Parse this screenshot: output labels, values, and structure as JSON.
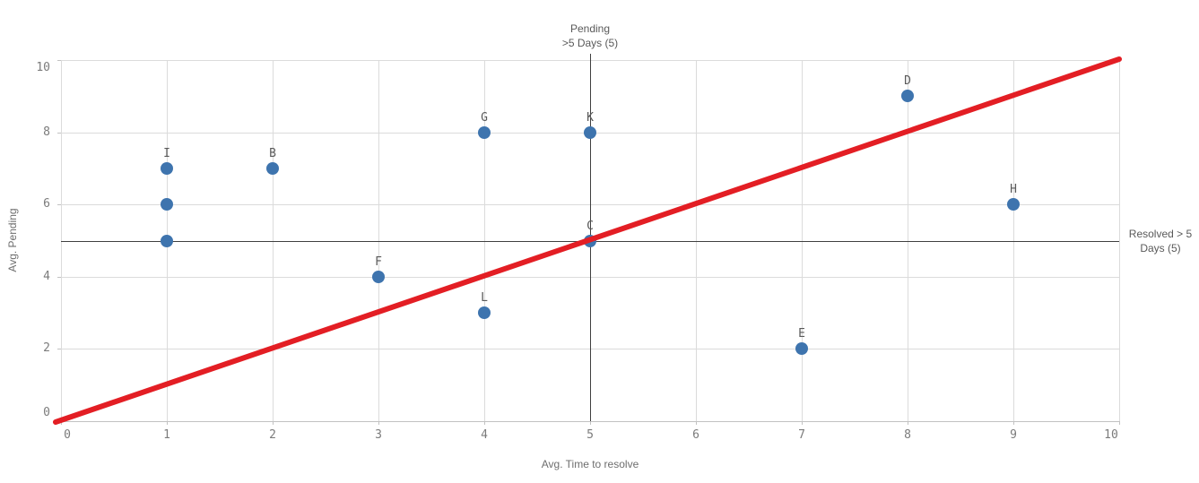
{
  "chart_data": {
    "type": "scatter",
    "title": "",
    "xlabel": "Avg. Time to resolve",
    "ylabel": "Avg. Pending",
    "xlim": [
      0,
      10
    ],
    "ylim": [
      0,
      10
    ],
    "x_ticks": [
      0,
      1,
      2,
      3,
      4,
      5,
      6,
      7,
      8,
      9,
      10
    ],
    "y_ticks": [
      0,
      2,
      4,
      6,
      8,
      10
    ],
    "grid": true,
    "legend": false,
    "points": [
      {
        "label": "I",
        "x": 1,
        "y": 7
      },
      {
        "label": "",
        "x": 1,
        "y": 6
      },
      {
        "label": "",
        "x": 1,
        "y": 5
      },
      {
        "label": "B",
        "x": 2,
        "y": 7
      },
      {
        "label": "F",
        "x": 3,
        "y": 4
      },
      {
        "label": "G",
        "x": 4,
        "y": 8
      },
      {
        "label": "L",
        "x": 4,
        "y": 3
      },
      {
        "label": "K",
        "x": 5,
        "y": 8
      },
      {
        "label": "C",
        "x": 5,
        "y": 5
      },
      {
        "label": "E",
        "x": 7,
        "y": 2
      },
      {
        "label": "D",
        "x": 8,
        "y": 9
      },
      {
        "label": "H",
        "x": 9,
        "y": 6
      }
    ],
    "reference_lines": [
      {
        "orientation": "vertical",
        "value": 5,
        "label_lines": [
          "Pending",
          ">5 Days (5)"
        ]
      },
      {
        "orientation": "horizontal",
        "value": 5,
        "label_lines": [
          "Resolved > 5",
          "Days (5)"
        ]
      }
    ],
    "trend_line": {
      "from": [
        0,
        0
      ],
      "to": [
        10,
        10
      ]
    },
    "colors": {
      "point": "#3E74AE",
      "trend": "#E31E24",
      "grid": "#DBDBDB",
      "axis": "#C2C2C2",
      "reference": "#3F3F3F",
      "tick_text": "#7B7B7B",
      "label_text": "#595959"
    }
  }
}
